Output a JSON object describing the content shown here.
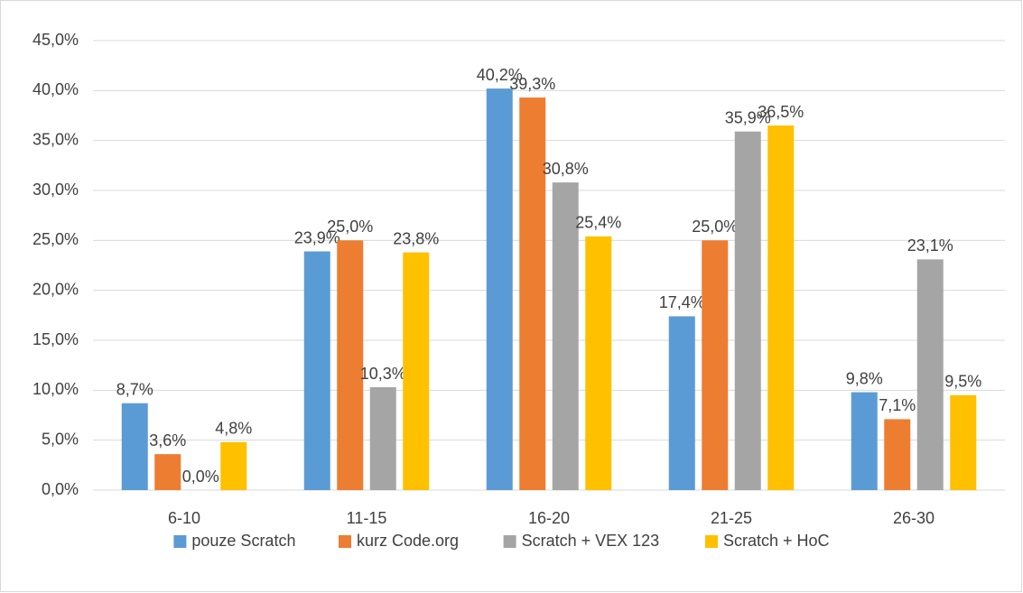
{
  "chart_data": {
    "type": "bar",
    "categories": [
      "6-10",
      "11-15",
      "16-20",
      "21-25",
      "26-30"
    ],
    "series": [
      {
        "name": "pouze Scratch",
        "color": "#5b9bd5",
        "values": [
          8.7,
          23.9,
          40.2,
          17.4,
          9.8
        ],
        "value_labels": [
          "8,7%",
          "23,9%",
          "40,2%",
          "17,4%",
          "9,8%"
        ]
      },
      {
        "name": "kurz Code.org",
        "color": "#ed7d31",
        "values": [
          3.6,
          25.0,
          39.3,
          25.0,
          7.1
        ],
        "value_labels": [
          "3,6%",
          "25,0%",
          "39,3%",
          "25,0%",
          "7,1%"
        ]
      },
      {
        "name": "Scratch + VEX 123",
        "color": "#a5a5a5",
        "values": [
          0.0,
          10.3,
          30.8,
          35.9,
          23.1
        ],
        "value_labels": [
          "0,0%",
          "10,3%",
          "30,8%",
          "35,9%",
          "23,1%"
        ]
      },
      {
        "name": "Scratch + HoC",
        "color": "#ffc000",
        "values": [
          4.8,
          23.8,
          25.4,
          36.5,
          9.5
        ],
        "value_labels": [
          "4,8%",
          "23,8%",
          "25,4%",
          "36,5%",
          "9,5%"
        ]
      }
    ],
    "ylim": [
      0,
      45
    ],
    "yticks": [
      {
        "value": 0,
        "label": "0,0%"
      },
      {
        "value": 5,
        "label": "5,0%"
      },
      {
        "value": 10,
        "label": "10,0%"
      },
      {
        "value": 15,
        "label": "15,0%"
      },
      {
        "value": 20,
        "label": "20,0%"
      },
      {
        "value": 25,
        "label": "25,0%"
      },
      {
        "value": 30,
        "label": "30,0%"
      },
      {
        "value": 35,
        "label": "35,0%"
      },
      {
        "value": 40,
        "label": "40,0%"
      },
      {
        "value": 45,
        "label": "45,0%"
      }
    ],
    "grid": true,
    "legend": "bottom"
  }
}
